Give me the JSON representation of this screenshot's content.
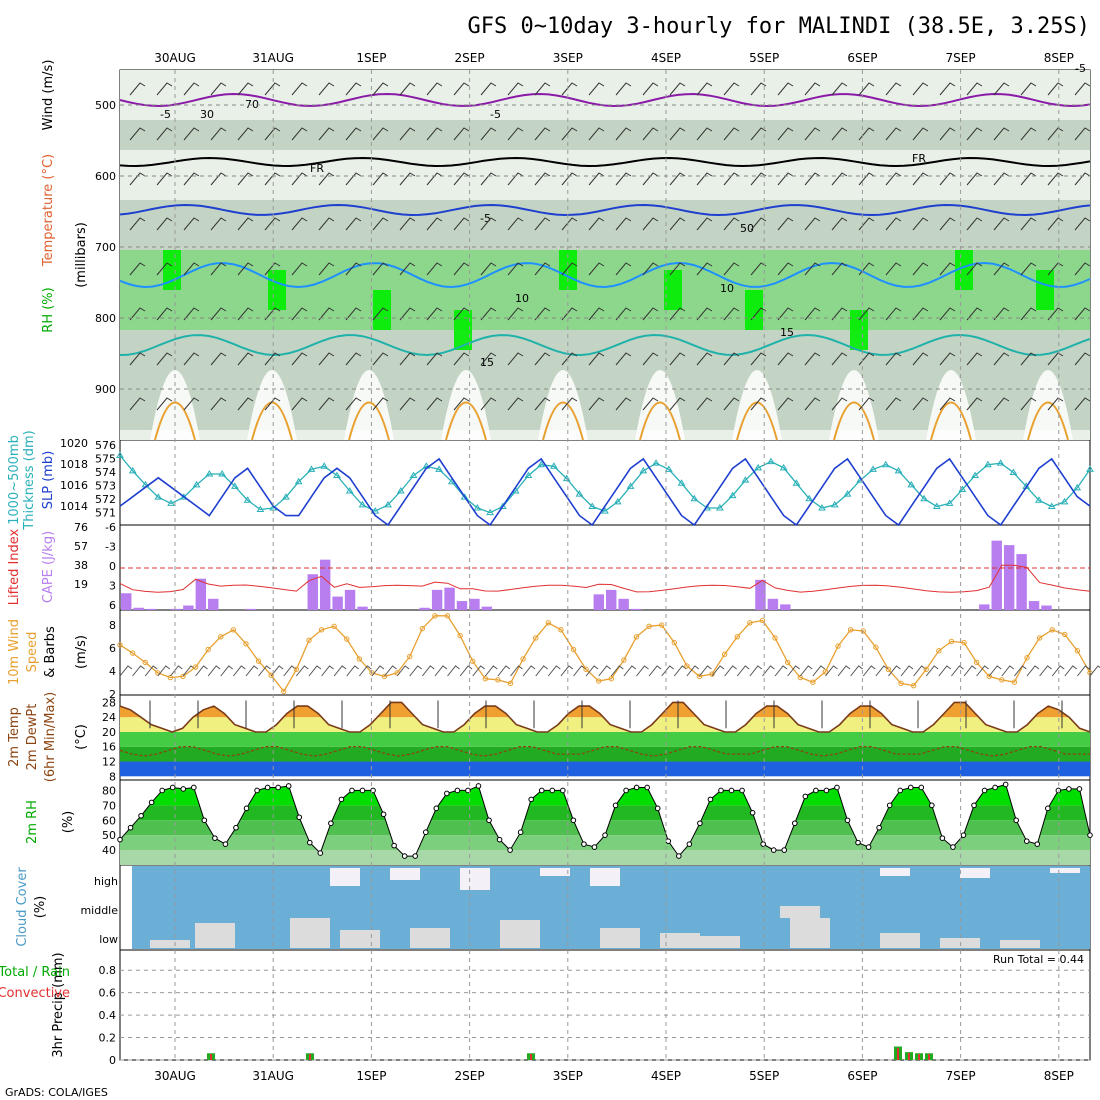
{
  "title": "GFS 0~10day 3-hourly for MALINDI (38.5E, 3.25S)",
  "credit": "GrADS: COLA/IGES",
  "dates": [
    "30AUG",
    "31AUG",
    "1SEP",
    "2SEP",
    "3SEP",
    "4SEP",
    "5SEP",
    "6SEP",
    "7SEP",
    "8SEP"
  ],
  "colors": {
    "rh_dark": "#00ee00",
    "rh_mid": "#66cc66",
    "rh_light": "#b5c8b5",
    "rh_pale": "#e8f0e8",
    "blue": "#1f3fcf",
    "cyan": "#2ab0b8",
    "orange": "#e8a030",
    "purple": "#b87ef0",
    "red": "#e03030",
    "cloud_bg": "#6baed6",
    "cloud": "#dcdcdc",
    "green": "#22aa22"
  },
  "panels": {
    "upper": {
      "ylabel_parts": [
        "Wind (m/s)",
        "Temperature (°C)",
        "RH (%)",
        "(millibars)"
      ],
      "yticks": [
        "500",
        "600",
        "700",
        "800",
        "900"
      ],
      "contour_labels": [
        "-5",
        "30",
        "-5",
        "FR",
        "FR",
        "-5",
        "70",
        "50",
        "-5",
        "10",
        "10",
        "15",
        "15"
      ]
    },
    "thickness": {
      "ylabel_parts": [
        "1000~500mb",
        "Thickness (dm)",
        "SLP (mb)"
      ],
      "left_ticks": [
        "576",
        "575",
        "574",
        "573",
        "572",
        "571"
      ],
      "right_ticks": [
        "1020",
        "1018",
        "1016",
        "1014"
      ],
      "slp": [
        1014,
        1015,
        1016,
        1017,
        1016,
        1015,
        1014,
        1013,
        1015,
        1017,
        1018,
        1016,
        1014,
        1013,
        1013,
        1015,
        1017,
        1018,
        1017,
        1015,
        1013,
        1012,
        1014,
        1016,
        1018,
        1019,
        1017,
        1015,
        1013,
        1012,
        1014,
        1016,
        1018,
        1019,
        1017,
        1015,
        1013,
        1012,
        1014,
        1016,
        1018,
        1019,
        1017,
        1015,
        1013,
        1012,
        1014,
        1016,
        1018,
        1019,
        1017,
        1015,
        1013,
        1012,
        1014,
        1016,
        1018,
        1019,
        1017,
        1015,
        1013,
        1012,
        1014,
        1016,
        1018,
        1019,
        1017,
        1015,
        1013,
        1012,
        1014,
        1016,
        1018,
        1019,
        1017,
        1015,
        1014
      ],
      "thickness": [
        575.5,
        574.5,
        573.6,
        572.8,
        572.4,
        572.8,
        573.6,
        574.3,
        574.3,
        573.5,
        572.6,
        572.0,
        572.1,
        572.8,
        573.8,
        574.6,
        574.8,
        574.2,
        573.2,
        572.3,
        571.9,
        572.3,
        573.2,
        574.2,
        574.8,
        574.6,
        573.8,
        572.8,
        572.1,
        571.8,
        572.2,
        573.2,
        574.2,
        574.9,
        574.8,
        574.0,
        573.0,
        572.2,
        571.9,
        572.5,
        573.5,
        574.5,
        575.0,
        574.6,
        573.7,
        572.7,
        572.1,
        572.1,
        572.9,
        573.9,
        574.7,
        575.1,
        574.7,
        573.7,
        572.7,
        572.1,
        572.3,
        573.0,
        573.9,
        574.6,
        574.9,
        574.5,
        573.6,
        572.7,
        572.2,
        572.4,
        573.3,
        574.2,
        574.9,
        575.0,
        574.4,
        573.5,
        572.6,
        572.2,
        572.5,
        573.4,
        574.6
      ]
    },
    "cape": {
      "ylabel_parts": [
        "Lifted Index",
        "CAPE (J/kg)"
      ],
      "left_ticks": [
        "-6",
        "-3",
        "0",
        "3",
        "6"
      ],
      "right_ticks": [
        "76",
        "57",
        "38",
        "19"
      ],
      "cape": [
        15,
        2,
        1,
        0,
        1,
        4,
        28,
        10,
        0,
        0,
        1,
        0,
        0,
        0,
        0,
        32,
        45,
        12,
        18,
        3,
        0,
        0,
        0,
        0,
        2,
        18,
        20,
        8,
        10,
        3,
        0,
        0,
        0,
        0,
        0,
        0,
        0,
        0,
        14,
        18,
        10,
        1,
        0,
        0,
        0,
        0,
        0,
        0,
        0,
        0,
        0,
        27,
        10,
        5,
        0,
        0,
        0,
        0,
        0,
        0,
        0,
        0,
        0,
        0,
        0,
        0,
        0,
        0,
        0,
        5,
        62,
        58,
        50,
        8,
        4,
        0,
        0,
        0
      ]
    },
    "wind": {
      "ylabel_parts": [
        "10m Wind",
        "Speed",
        "& Barbs",
        "(m/s)"
      ],
      "yticks": [
        "8",
        "6",
        "4",
        "2"
      ],
      "speed": [
        6.3,
        5.6,
        4.8,
        3.9,
        3.5,
        3.6,
        4.4,
        5.9,
        7.0,
        7.6,
        6.4,
        4.9,
        3.7,
        2.3,
        4.2,
        6.7,
        7.6,
        7.9,
        6.8,
        5.1,
        3.9,
        3.6,
        3.9,
        5.3,
        7.7,
        8.8,
        8.8,
        7.1,
        4.9,
        3.4,
        3.3,
        3.0,
        5.1,
        6.9,
        8.2,
        7.6,
        5.9,
        4.2,
        3.2,
        3.4,
        5.0,
        7.0,
        7.9,
        8.0,
        6.5,
        4.5,
        3.6,
        3.8,
        5.5,
        7.0,
        8.2,
        8.4,
        6.9,
        4.8,
        3.5,
        3.1,
        4.0,
        6.2,
        7.6,
        7.5,
        6.1,
        4.2,
        3.0,
        2.8,
        4.2,
        5.8,
        6.6,
        6.5,
        4.8,
        3.6,
        3.3,
        3.1,
        5.2,
        6.9,
        7.6,
        7.2,
        5.8,
        3.9
      ]
    },
    "temp": {
      "ylabel_parts": [
        "2m Temp",
        "2m DewPt",
        "(6hr Min/Max)",
        "(°C)"
      ],
      "yticks": [
        "28",
        "24",
        "20",
        "16",
        "12",
        "8"
      ],
      "temp": [
        27,
        26,
        24,
        22,
        21,
        20,
        21,
        24,
        26,
        27,
        25,
        22,
        21,
        20,
        20,
        22,
        25,
        27,
        27,
        25,
        22,
        21,
        20,
        20,
        22,
        25,
        28,
        28,
        25,
        22,
        21,
        20,
        20,
        22,
        25,
        27,
        27,
        25,
        22,
        21,
        20,
        20,
        22,
        25,
        27,
        27,
        25,
        22,
        21,
        20,
        20,
        22,
        25,
        28,
        28,
        25,
        22,
        21,
        20,
        20,
        22,
        25,
        27,
        27,
        25,
        22,
        21,
        20,
        20,
        22,
        25,
        27,
        27,
        25,
        22,
        21,
        20,
        20,
        22,
        25,
        28,
        28,
        25,
        22,
        21,
        20,
        20,
        22,
        25,
        27,
        26,
        24,
        21,
        20
      ],
      "dewpt": [
        15,
        14,
        13.5,
        14,
        15,
        16,
        16,
        15,
        14,
        13.5,
        14,
        15,
        16,
        16,
        15,
        14,
        13.5,
        14,
        15,
        16,
        16,
        15,
        14,
        13.5,
        14,
        15,
        16,
        16,
        15,
        14,
        13.5,
        14,
        15,
        16,
        16,
        15,
        14,
        14,
        14,
        15,
        16,
        16,
        15,
        14,
        13.5,
        14,
        15,
        16,
        16,
        15,
        14,
        14,
        14,
        15,
        16,
        16,
        15,
        14,
        13.5,
        14,
        15,
        16,
        16,
        15,
        14,
        14,
        14,
        15,
        16,
        16,
        15,
        14,
        13.5,
        14,
        15,
        16,
        16,
        15,
        14,
        14,
        14
      ]
    },
    "rh": {
      "ylabel_parts": [
        "2m RH",
        "(%)"
      ],
      "yticks": [
        "80",
        "70",
        "60",
        "50",
        "40"
      ],
      "rh": [
        47,
        55,
        63,
        72,
        80,
        82,
        81,
        82,
        60,
        48,
        44,
        55,
        68,
        80,
        82,
        82,
        83,
        62,
        45,
        38,
        58,
        74,
        80,
        80,
        80,
        64,
        43,
        36,
        36,
        52,
        68,
        78,
        80,
        80,
        83,
        60,
        47,
        40,
        52,
        74,
        80,
        80,
        80,
        60,
        44,
        42,
        50,
        70,
        80,
        82,
        82,
        68,
        46,
        36,
        44,
        58,
        74,
        80,
        80,
        80,
        65,
        44,
        40,
        40,
        58,
        76,
        80,
        80,
        82,
        60,
        45,
        42,
        55,
        70,
        80,
        82,
        82,
        70,
        48,
        42,
        50,
        70,
        80,
        82,
        84,
        60,
        46,
        44,
        68,
        80,
        81,
        81,
        50
      ]
    },
    "cloud": {
      "ylabel_parts": [
        "Cloud Cover",
        "(%)"
      ],
      "levels": [
        "high",
        "middle",
        "low"
      ]
    },
    "precip": {
      "ylabel_parts": [
        "3hr Precip (mm)",
        "Total / Rain",
        "Convective"
      ],
      "yticks": [
        "0.8",
        "0.6",
        "0.4",
        "0.2",
        "0"
      ],
      "run_total": "Run Total = 0.44"
    }
  }
}
